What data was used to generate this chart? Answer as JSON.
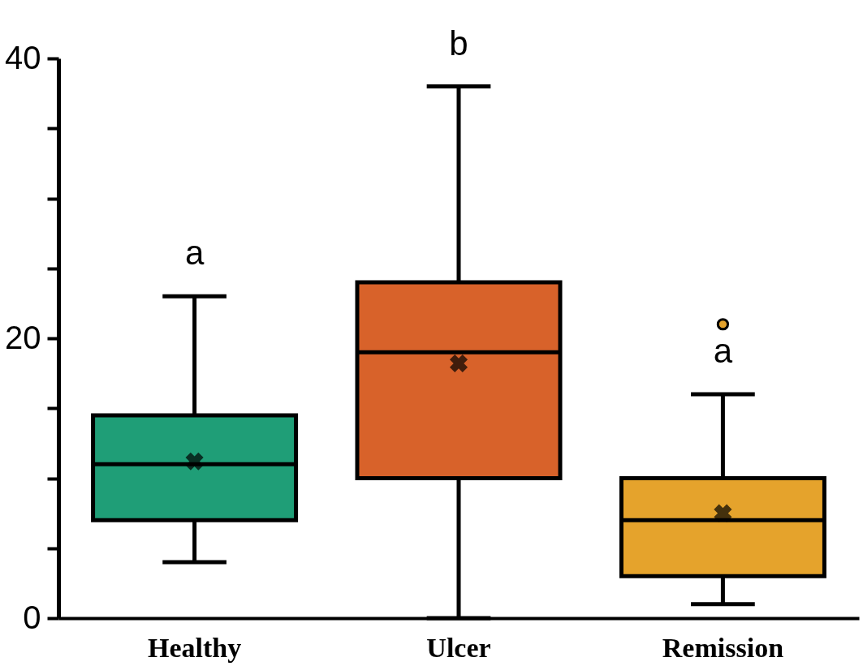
{
  "chart_data": {
    "type": "box",
    "categories": [
      "Healthy",
      "Ulcer",
      "Remission"
    ],
    "colors": [
      "#1f9e77",
      "#d8622a",
      "#e5a32c"
    ],
    "boxes": [
      {
        "low": 4,
        "q1": 7,
        "median": 11,
        "q3": 14.5,
        "high": 23,
        "mean": 11.2
      },
      {
        "low": 0,
        "q1": 10,
        "median": 19,
        "q3": 24,
        "high": 38,
        "mean": 18.2
      },
      {
        "low": 1,
        "q1": 3,
        "median": 7,
        "q3": 10,
        "high": 16,
        "mean": 7.5,
        "outliers": [
          21
        ]
      }
    ],
    "ylim": [
      0,
      40
    ],
    "yticks": [
      0,
      {
        "value": 5,
        "label": null
      },
      {
        "value": 10,
        "label": null
      },
      {
        "value": 15,
        "label": null
      },
      20,
      {
        "value": 25,
        "label": null
      },
      {
        "value": 30,
        "label": null
      },
      {
        "value": 35,
        "label": null
      },
      40
    ],
    "annotations": [
      "a",
      "b",
      "a"
    ]
  }
}
